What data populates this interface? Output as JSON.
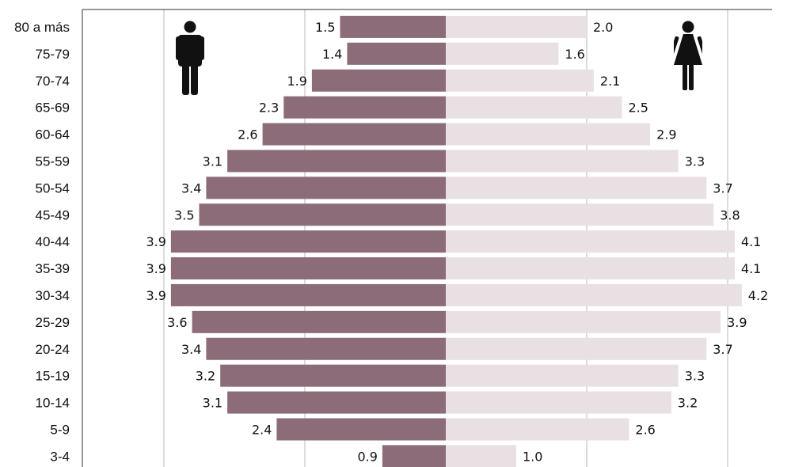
{
  "chart_data": {
    "type": "bar",
    "orientation": "horizontal",
    "layout": "population-pyramid",
    "title": "",
    "xlabel": "",
    "ylabel": "",
    "categories": [
      "80 a más",
      "75-79",
      "70-74",
      "65-69",
      "60-64",
      "55-59",
      "50-54",
      "45-49",
      "40-44",
      "35-39",
      "30-34",
      "25-29",
      "20-24",
      "15-19",
      "10-14",
      "5-9",
      "3-4"
    ],
    "series": [
      {
        "side": "left",
        "icon": "male-icon",
        "color": "#8c6c78",
        "values": [
          1.5,
          1.4,
          1.9,
          2.3,
          2.6,
          3.1,
          3.4,
          3.5,
          3.9,
          3.9,
          3.9,
          3.6,
          3.4,
          3.2,
          3.1,
          2.4,
          0.9
        ],
        "labels": [
          "1.5",
          "1.4",
          "1.9",
          "2.3",
          "2.6",
          "3.1",
          "3.4",
          "3.5",
          "3.9",
          "3.9",
          "3.9",
          "3.6",
          "3.4",
          "3.2",
          "3.1",
          "2.4",
          "0.9"
        ]
      },
      {
        "side": "right",
        "icon": "female-icon",
        "color": "#e8e0e2",
        "values": [
          2.0,
          1.6,
          2.1,
          2.5,
          2.9,
          3.3,
          3.7,
          3.8,
          4.1,
          4.1,
          4.2,
          3.9,
          3.7,
          3.3,
          3.2,
          2.6,
          1.0
        ],
        "labels": [
          "2.0",
          "1.6",
          "2.1",
          "2.5",
          "2.9",
          "3.3",
          "3.7",
          "3.8",
          "4.1",
          "4.1",
          "4.2",
          "3.9",
          "3.7",
          "3.3",
          "3.2",
          "2.6",
          "1.0"
        ]
      }
    ],
    "grid": true
  }
}
